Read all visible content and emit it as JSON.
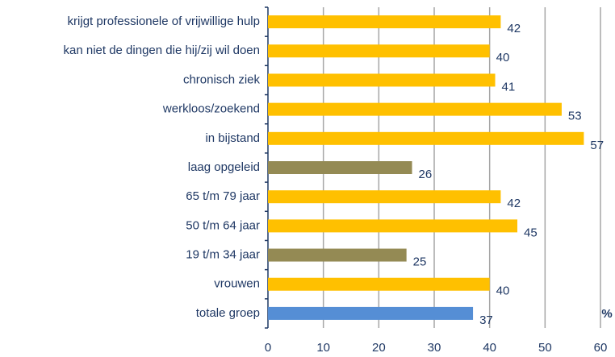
{
  "chart_data": {
    "type": "barh",
    "categories": [
      "krijgt professionele of vrijwillige hulp",
      "kan niet de dingen die hij/zij wil doen",
      "chronisch ziek",
      "werkloos/zoekend",
      "in bijstand",
      "laag opgeleid",
      "65 t/m 79 jaar",
      "50 t/m 64 jaar",
      "19 t/m 34 jaar",
      "vrouwen",
      "totale groep"
    ],
    "values": [
      42,
      40,
      41,
      53,
      57,
      26,
      42,
      45,
      25,
      40,
      37
    ],
    "colors": [
      "#FFC000",
      "#FFC000",
      "#FFC000",
      "#FFC000",
      "#FFC000",
      "#948A54",
      "#FFC000",
      "#FFC000",
      "#948A54",
      "#FFC000",
      "#558ED5"
    ],
    "xlabel": "%",
    "xlim": [
      0,
      60
    ],
    "xticks": [
      0,
      10,
      20,
      30,
      40,
      50,
      60
    ],
    "grid": true
  }
}
